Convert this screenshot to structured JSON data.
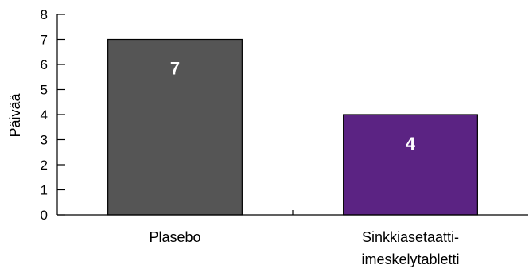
{
  "chart_data": {
    "type": "bar",
    "categories": [
      "Plasebo",
      "Sinkkiasetaatti-\nimeskelytabletti"
    ],
    "values": [
      7,
      4
    ],
    "data_labels": [
      "7",
      "4"
    ],
    "colors": [
      "#555555",
      "#5b2383"
    ],
    "title": "",
    "xlabel": "",
    "ylabel": "Päivää",
    "ylim": [
      0,
      8
    ],
    "yticks": [
      0,
      1,
      2,
      3,
      4,
      5,
      6,
      7,
      8
    ],
    "grid": false,
    "legend": "none"
  }
}
